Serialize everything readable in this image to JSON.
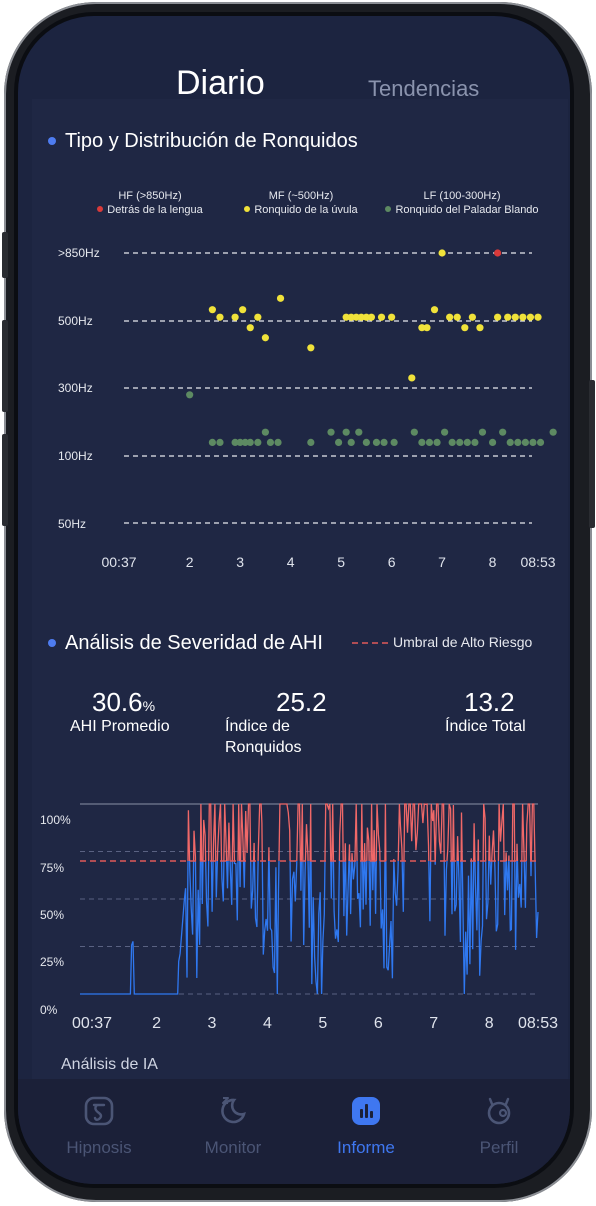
{
  "tabs": {
    "daily": "Diario",
    "trends": "Tendencias"
  },
  "snore_section": {
    "title": "Tipo y Distribución de Ronquidos",
    "legend": [
      {
        "band": "HF (>850Hz)",
        "label": "Detrás de la lengua",
        "color": "#d93a3a"
      },
      {
        "band": "MF (~500Hz)",
        "label": "Ronquido de la úvula",
        "color": "#f0e23a"
      },
      {
        "band": "LF (100-300Hz)",
        "label": "Ronquido del Paladar Blando",
        "color": "#5d8a62"
      }
    ],
    "freq_levels": [
      ">850Hz",
      "500Hz",
      "300Hz",
      "100Hz",
      "50Hz"
    ],
    "x_ticks": [
      "00:37",
      "2",
      "3",
      "4",
      "5",
      "6",
      "7",
      "8",
      "08:53"
    ]
  },
  "ahi_section": {
    "title": "Análisis de Severidad de AHI",
    "legend_threshold": "Umbral de Alto Riesgo",
    "stats": [
      {
        "value": "30.6",
        "unit": "%",
        "label": "AHI Promedio"
      },
      {
        "value": "25.2",
        "unit": "",
        "label": "Índice de Ronquidos"
      },
      {
        "value": "13.2",
        "unit": "",
        "label": "Índice Total"
      }
    ],
    "y_ticks": [
      "100%",
      "75%",
      "50%",
      "25%",
      "0%"
    ],
    "x_ticks": [
      "00:37",
      "2",
      "3",
      "4",
      "5",
      "6",
      "7",
      "8",
      "08:53"
    ],
    "threshold_value_pct": 70,
    "colors": {
      "normal": "#2f78f0",
      "high_risk": "#f06868",
      "threshold": "#e05a5a"
    }
  },
  "ai_label": "Análisis de IA",
  "nav": [
    {
      "label": "Hipnosis",
      "icon": "hypnosis-icon",
      "active": false
    },
    {
      "label": "Monitor",
      "icon": "moon-sleep-icon",
      "active": false
    },
    {
      "label": "Informe",
      "icon": "report-chart-icon",
      "active": true
    },
    {
      "label": "Perfil",
      "icon": "profile-icon",
      "active": false
    }
  ],
  "chart_data": [
    {
      "type": "scatter",
      "title": "Tipo y Distribución de Ronquidos",
      "x_unit": "hour of night",
      "x_ticks": [
        "00:37",
        "2",
        "3",
        "4",
        "5",
        "6",
        "7",
        "8",
        "08:53"
      ],
      "series": [
        {
          "name": "Detrás de la lengua",
          "color": "#d93a3a",
          "points": [
            [
              8.1,
              ">850Hz"
            ]
          ]
        },
        {
          "name": "Ronquido de la úvula",
          "color": "#f0e23a",
          "points": [
            [
              2.45,
              560
            ],
            [
              2.6,
              520
            ],
            [
              2.9,
              520
            ],
            [
              3.05,
              560
            ],
            [
              3.2,
              480
            ],
            [
              3.35,
              520
            ],
            [
              3.5,
              450
            ],
            [
              3.8,
              620
            ],
            [
              4.4,
              420
            ],
            [
              5.1,
              520
            ],
            [
              5.2,
              520
            ],
            [
              5.3,
              520
            ],
            [
              5.4,
              520
            ],
            [
              5.5,
              520
            ],
            [
              5.6,
              520
            ],
            [
              5.8,
              520
            ],
            [
              6.0,
              520
            ],
            [
              6.4,
              330
            ],
            [
              6.6,
              480
            ],
            [
              6.7,
              480
            ],
            [
              6.85,
              560
            ],
            [
              7.0,
              860
            ],
            [
              7.15,
              520
            ],
            [
              7.3,
              520
            ],
            [
              7.45,
              480
            ],
            [
              7.6,
              520
            ],
            [
              7.75,
              480
            ],
            [
              8.1,
              520
            ],
            [
              8.3,
              520
            ],
            [
              8.45,
              520
            ],
            [
              8.6,
              520
            ],
            [
              8.75,
              520
            ],
            [
              8.9,
              520
            ]
          ]
        },
        {
          "name": "Ronquido del Paladar Blando",
          "color": "#5d8a62",
          "points": [
            [
              2.0,
              280
            ],
            [
              2.45,
              140
            ],
            [
              2.6,
              140
            ],
            [
              2.9,
              140
            ],
            [
              3.0,
              140
            ],
            [
              3.1,
              140
            ],
            [
              3.2,
              140
            ],
            [
              3.35,
              140
            ],
            [
              3.5,
              170
            ],
            [
              3.6,
              140
            ],
            [
              3.75,
              140
            ],
            [
              4.4,
              140
            ],
            [
              4.8,
              170
            ],
            [
              4.95,
              140
            ],
            [
              5.1,
              170
            ],
            [
              5.2,
              140
            ],
            [
              5.35,
              170
            ],
            [
              5.5,
              140
            ],
            [
              5.7,
              140
            ],
            [
              5.85,
              140
            ],
            [
              6.05,
              140
            ],
            [
              6.45,
              170
            ],
            [
              6.6,
              140
            ],
            [
              6.75,
              140
            ],
            [
              6.9,
              140
            ],
            [
              7.05,
              170
            ],
            [
              7.2,
              140
            ],
            [
              7.35,
              140
            ],
            [
              7.5,
              140
            ],
            [
              7.65,
              140
            ],
            [
              7.8,
              170
            ],
            [
              8.0,
              140
            ],
            [
              8.2,
              170
            ],
            [
              8.35,
              140
            ],
            [
              8.5,
              140
            ],
            [
              8.65,
              140
            ],
            [
              8.8,
              140
            ],
            [
              8.95,
              140
            ],
            [
              9.2,
              170
            ]
          ]
        }
      ]
    },
    {
      "type": "line",
      "title": "Análisis de Severidad de AHI",
      "ylim": [
        0,
        100
      ],
      "y_ticks": [
        "100%",
        "75%",
        "50%",
        "25%",
        "0%"
      ],
      "x_ticks": [
        "00:37",
        "2",
        "3",
        "4",
        "5",
        "6",
        "7",
        "8",
        "08:53"
      ],
      "threshold": 70,
      "series": [
        {
          "name": "AHI",
          "segments": [
            {
              "start": 0.62,
              "end": 1.55,
              "level": 0
            },
            {
              "start": 1.55,
              "end": 1.6,
              "level": 40
            },
            {
              "start": 1.6,
              "end": 2.4,
              "level": 0
            },
            {
              "start": 2.4,
              "end": 2.45,
              "level": 45
            },
            {
              "start": 2.5,
              "end": 2.8,
              "level": 55
            },
            {
              "start": 2.8,
              "end": 3.9,
              "level": 85
            },
            {
              "start": 3.9,
              "end": 4.2,
              "level": 40
            },
            {
              "start": 4.2,
              "end": 4.8,
              "level": 80
            },
            {
              "start": 4.8,
              "end": 5.0,
              "level": 10
            },
            {
              "start": 5.0,
              "end": 5.5,
              "level": 80
            },
            {
              "start": 5.5,
              "end": 5.9,
              "level": 90
            },
            {
              "start": 5.9,
              "end": 6.4,
              "level": 60
            },
            {
              "start": 6.4,
              "end": 7.0,
              "level": 85
            },
            {
              "start": 7.0,
              "end": 7.5,
              "level": 80
            },
            {
              "start": 7.5,
              "end": 7.9,
              "level": 45
            },
            {
              "start": 7.9,
              "end": 8.4,
              "level": 85
            },
            {
              "start": 8.4,
              "end": 8.88,
              "level": 75
            }
          ]
        }
      ]
    }
  ]
}
